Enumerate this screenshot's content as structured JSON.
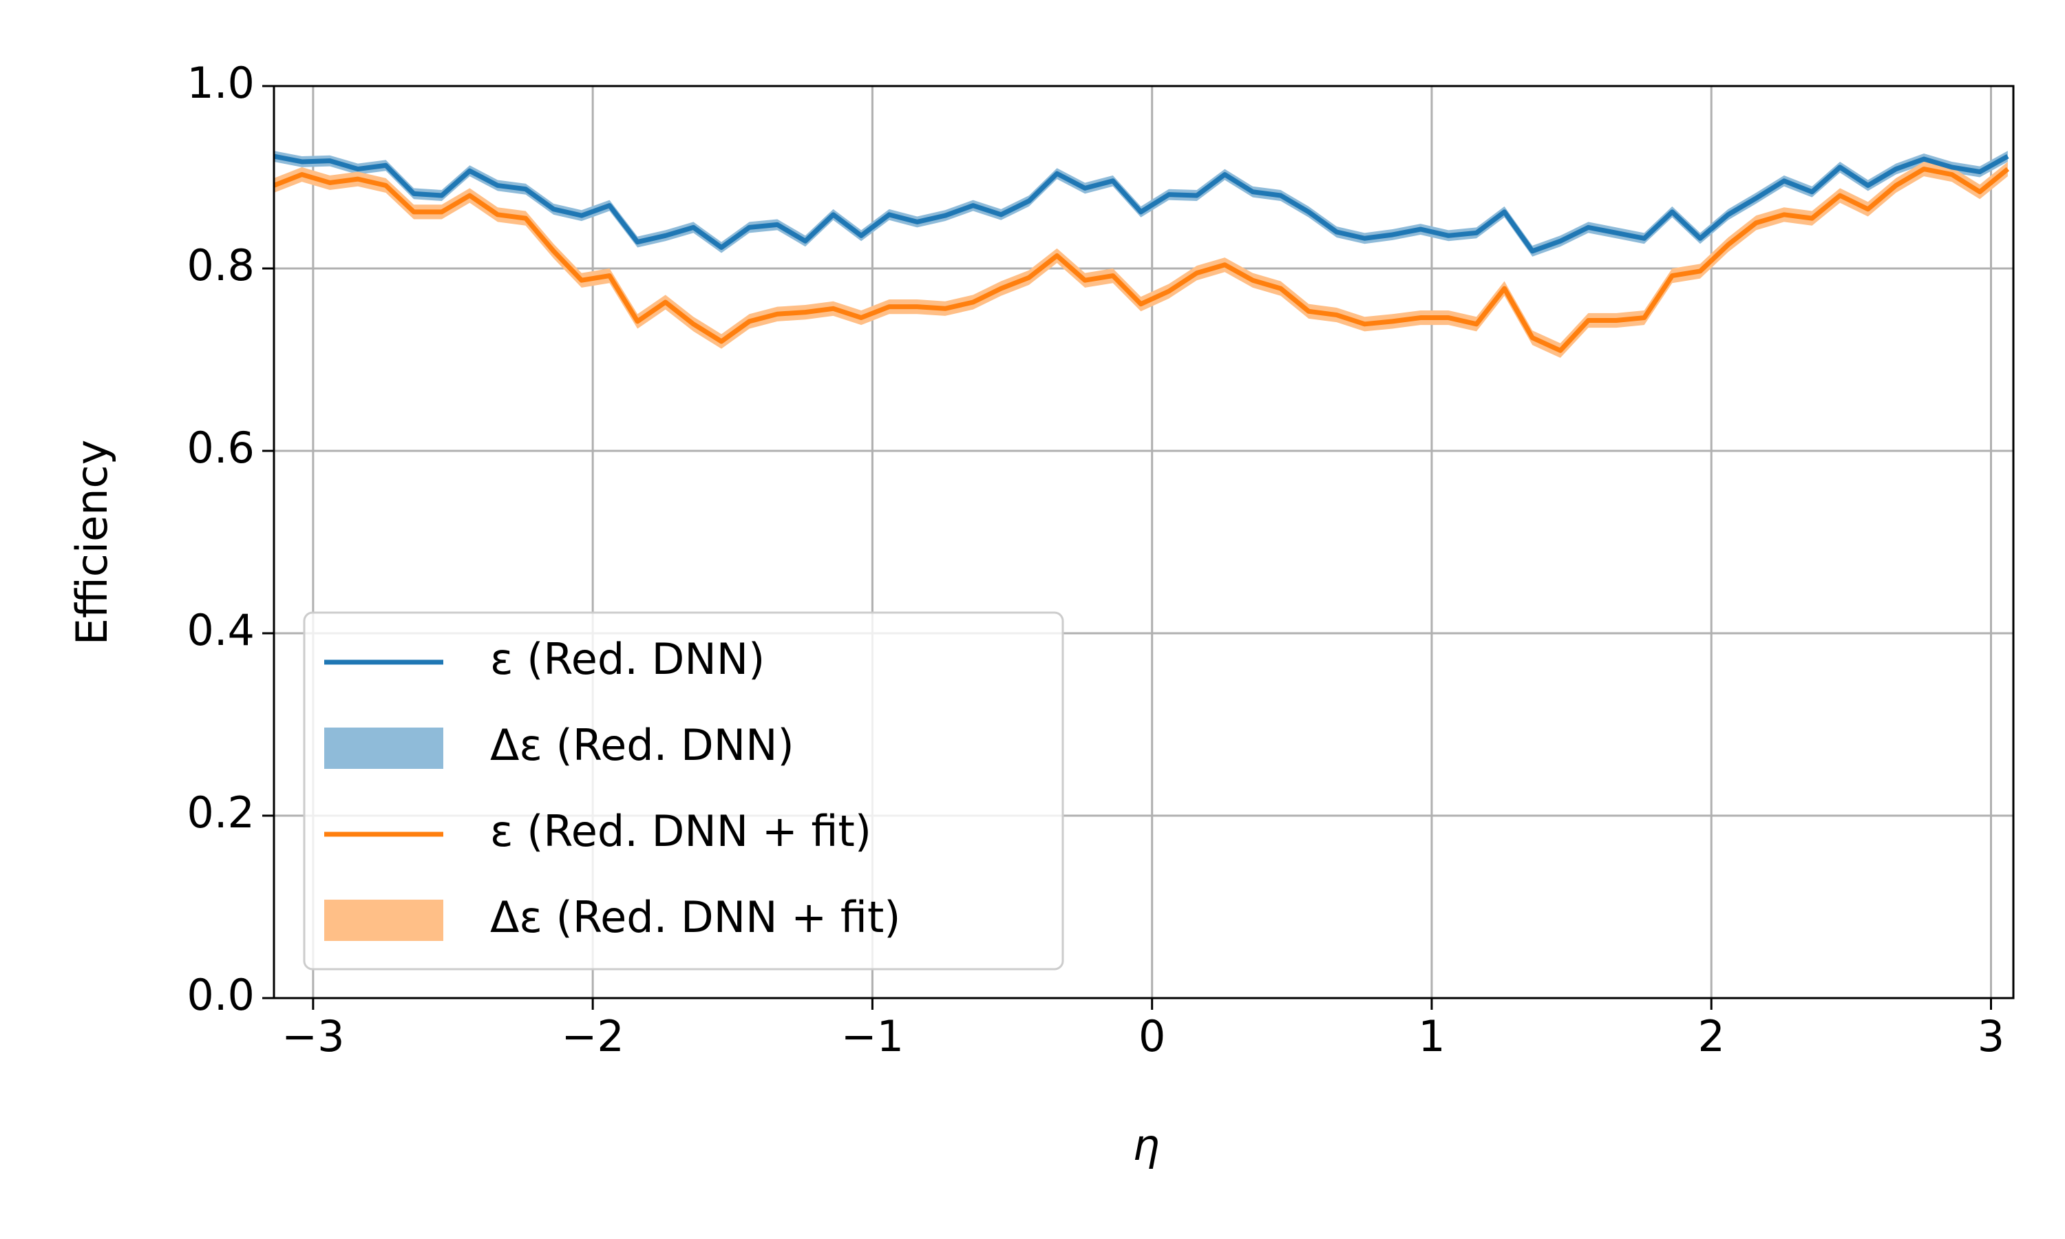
{
  "chart_data": {
    "type": "line",
    "xlabel": "η",
    "ylabel": "Efficiency",
    "x": [
      -3.14,
      -3.04,
      -2.94,
      -2.84,
      -2.74,
      -2.64,
      -2.54,
      -2.44,
      -2.34,
      -2.24,
      -2.14,
      -2.04,
      -1.94,
      -1.84,
      -1.74,
      -1.64,
      -1.54,
      -1.44,
      -1.34,
      -1.24,
      -1.14,
      -1.04,
      -0.94,
      -0.84,
      -0.74,
      -0.64,
      -0.54,
      -0.44,
      -0.34,
      -0.24,
      -0.14,
      -0.04,
      0.06,
      0.16,
      0.26,
      0.36,
      0.46,
      0.56,
      0.66,
      0.76,
      0.86,
      0.96,
      1.06,
      1.16,
      1.26,
      1.36,
      1.46,
      1.56,
      1.66,
      1.76,
      1.86,
      1.96,
      2.06,
      2.16,
      2.26,
      2.36,
      2.46,
      2.56,
      2.66,
      2.76,
      2.86,
      2.96,
      3.06
    ],
    "series": [
      {
        "name": "ε (Red. DNN)",
        "band_name": "Δε (Red. DNN)",
        "color": "#1f77b4",
        "band_color": "#8fbbd9",
        "values": [
          0.923,
          0.917,
          0.918,
          0.909,
          0.913,
          0.882,
          0.88,
          0.907,
          0.891,
          0.887,
          0.865,
          0.858,
          0.869,
          0.829,
          0.836,
          0.845,
          0.823,
          0.845,
          0.848,
          0.83,
          0.859,
          0.836,
          0.859,
          0.851,
          0.858,
          0.869,
          0.859,
          0.874,
          0.904,
          0.888,
          0.896,
          0.862,
          0.881,
          0.88,
          0.903,
          0.884,
          0.88,
          0.862,
          0.84,
          0.833,
          0.837,
          0.843,
          0.836,
          0.839,
          0.862,
          0.819,
          0.83,
          0.845,
          0.839,
          0.833,
          0.862,
          0.833,
          0.859,
          0.877,
          0.896,
          0.884,
          0.911,
          0.891,
          0.909,
          0.92,
          0.911,
          0.906,
          0.923
        ],
        "errors": [
          0.006,
          0.006,
          0.006,
          0.006,
          0.006,
          0.006,
          0.006,
          0.006,
          0.006,
          0.006,
          0.006,
          0.006,
          0.006,
          0.006,
          0.006,
          0.006,
          0.006,
          0.006,
          0.006,
          0.006,
          0.006,
          0.006,
          0.006,
          0.006,
          0.006,
          0.006,
          0.006,
          0.006,
          0.006,
          0.006,
          0.006,
          0.006,
          0.006,
          0.006,
          0.006,
          0.006,
          0.006,
          0.006,
          0.006,
          0.006,
          0.006,
          0.006,
          0.006,
          0.006,
          0.006,
          0.006,
          0.006,
          0.006,
          0.006,
          0.006,
          0.006,
          0.006,
          0.006,
          0.006,
          0.006,
          0.006,
          0.006,
          0.006,
          0.006,
          0.006,
          0.006,
          0.006,
          0.006
        ]
      },
      {
        "name": "ε (Red. DNN + fit)",
        "band_name": "Δε (Red. DNN + fit)",
        "color": "#ff7f0e",
        "band_color": "#ffbf87",
        "values": [
          0.891,
          0.903,
          0.894,
          0.898,
          0.891,
          0.862,
          0.862,
          0.88,
          0.859,
          0.855,
          0.819,
          0.787,
          0.792,
          0.742,
          0.763,
          0.739,
          0.72,
          0.742,
          0.75,
          0.752,
          0.756,
          0.746,
          0.758,
          0.758,
          0.756,
          0.763,
          0.778,
          0.79,
          0.814,
          0.787,
          0.792,
          0.761,
          0.775,
          0.795,
          0.804,
          0.787,
          0.778,
          0.753,
          0.749,
          0.739,
          0.742,
          0.746,
          0.746,
          0.739,
          0.778,
          0.724,
          0.71,
          0.743,
          0.743,
          0.746,
          0.792,
          0.797,
          0.826,
          0.85,
          0.859,
          0.855,
          0.88,
          0.865,
          0.891,
          0.909,
          0.903,
          0.884,
          0.909
        ],
        "errors": [
          0.008,
          0.008,
          0.008,
          0.008,
          0.008,
          0.008,
          0.008,
          0.008,
          0.008,
          0.008,
          0.008,
          0.008,
          0.008,
          0.008,
          0.008,
          0.008,
          0.008,
          0.008,
          0.008,
          0.008,
          0.008,
          0.008,
          0.008,
          0.008,
          0.008,
          0.008,
          0.008,
          0.008,
          0.008,
          0.008,
          0.008,
          0.008,
          0.008,
          0.008,
          0.008,
          0.008,
          0.008,
          0.008,
          0.008,
          0.008,
          0.008,
          0.008,
          0.008,
          0.008,
          0.008,
          0.008,
          0.008,
          0.008,
          0.008,
          0.008,
          0.008,
          0.008,
          0.008,
          0.008,
          0.008,
          0.008,
          0.008,
          0.008,
          0.008,
          0.008,
          0.008,
          0.008,
          0.008
        ]
      }
    ],
    "xlim": [
      -3.14,
      3.08
    ],
    "ylim": [
      0,
      1
    ],
    "xticks": [
      {
        "value": -3,
        "label": "−3"
      },
      {
        "value": -2,
        "label": "−2"
      },
      {
        "value": -1,
        "label": "−1"
      },
      0,
      1,
      2,
      3
    ],
    "yticks": [
      {
        "value": 0,
        "label": "0.0"
      },
      0.2,
      0.4,
      0.6,
      0.8,
      {
        "value": 1,
        "label": "1.0"
      }
    ],
    "grid": true,
    "legend": "lower left"
  }
}
